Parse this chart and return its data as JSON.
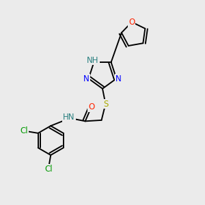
{
  "background_color": "#ebebeb",
  "atom_colors": {
    "N": "#0000ff",
    "O": "#ff2200",
    "S": "#aaaa00",
    "Cl": "#009900",
    "H_teal": "#2a8080",
    "C": "#000000"
  },
  "font_size": 8.5,
  "line_width": 1.4
}
